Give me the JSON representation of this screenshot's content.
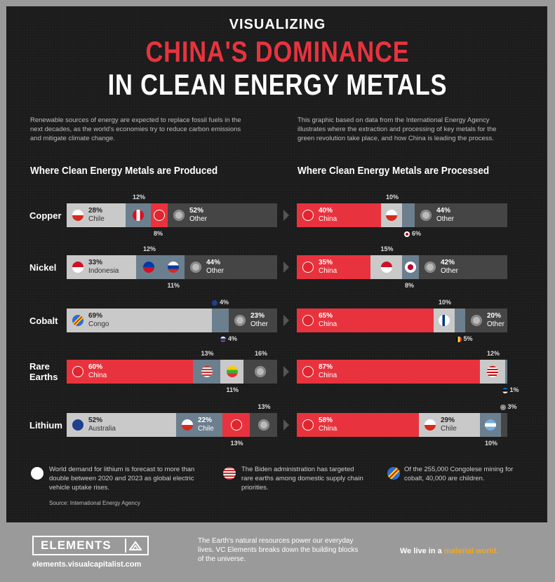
{
  "header": {
    "pre_title": "VISUALIZING",
    "title_red": "CHINA'S DOMINANCE",
    "title_white": "IN CLEAN ENERGY METALS"
  },
  "intro": {
    "left": "Renewable sources of energy are expected to replace fossil fuels in the next decades, as the world's economies try to reduce carbon emissions and mitigate climate change.",
    "right": "This graphic based on data from the International Energy Agency illustrates where the extraction and processing of key metals for the green revolution take place, and how China is leading the process."
  },
  "sections": {
    "produced": "Where Clean Energy Metals are Produced",
    "processed": "Where Clean Energy Metals are Processed"
  },
  "colors": {
    "china": "#e8333e",
    "light": "#c9c9c9",
    "mid": "#6c7f8e",
    "dark": "#3a3a3a",
    "other": "#454545"
  },
  "chart_data": [
    {
      "type": "bar",
      "title": "Where Clean Energy Metals are Produced",
      "categories": [
        "Copper",
        "Nickel",
        "Cobalt",
        "Rare Earths",
        "Lithium"
      ],
      "rows": [
        {
          "metal": "Copper",
          "segments": [
            {
              "country": "Chile",
              "value": 28,
              "label": "28%",
              "name": "Chile",
              "fill": "light",
              "flag": "chile-flag-icon"
            },
            {
              "country": "Peru",
              "value": 12,
              "label": "12%",
              "fill": "mid",
              "flag": "peru-flag-icon"
            },
            {
              "country": "China",
              "value": 8,
              "label": "8%",
              "fill": "china",
              "flag": "china-flag-icon"
            },
            {
              "country": "Other",
              "value": 52,
              "label": "52%",
              "name": "Other",
              "fill": "other",
              "flag": "other-globe-icon"
            }
          ]
        },
        {
          "metal": "Nickel",
          "segments": [
            {
              "country": "Indonesia",
              "value": 33,
              "label": "33%",
              "name": "Indonesia",
              "fill": "light",
              "flag": "indonesia-flag-icon"
            },
            {
              "country": "Philippines",
              "value": 12,
              "label": "12%",
              "fill": "mid",
              "flag": "philippines-flag-icon"
            },
            {
              "country": "Russia",
              "value": 11,
              "label": "11%",
              "fill": "mid",
              "flag": "russia-flag-icon"
            },
            {
              "country": "Other",
              "value": 44,
              "label": "44%",
              "name": "Other",
              "fill": "other",
              "flag": "other-globe-icon"
            }
          ]
        },
        {
          "metal": "Cobalt",
          "segments": [
            {
              "country": "Congo",
              "value": 69,
              "label": "69%",
              "name": "Congo",
              "fill": "light",
              "flag": "congo-flag-icon"
            },
            {
              "country": "Australia",
              "value": 4,
              "label": "4%",
              "fill": "mid",
              "flag": "australia-flag-icon"
            },
            {
              "country": "Russia",
              "value": 4,
              "label": "4%",
              "fill": "mid",
              "flag": "russia-flag-icon"
            },
            {
              "country": "Other",
              "value": 23,
              "label": "23%",
              "name": "Other",
              "fill": "other",
              "flag": "other-globe-icon"
            }
          ]
        },
        {
          "metal": "Rare Earths",
          "segments": [
            {
              "country": "China",
              "value": 60,
              "label": "60%",
              "name": "China",
              "fill": "china",
              "flag": "china-flag-icon"
            },
            {
              "country": "USA",
              "value": 13,
              "label": "13%",
              "fill": "mid",
              "flag": "usa-flag-icon"
            },
            {
              "country": "Myanmar",
              "value": 11,
              "label": "11%",
              "fill": "light",
              "flag": "myanmar-flag-icon"
            },
            {
              "country": "Other",
              "value": 16,
              "label": "16%",
              "fill": "other",
              "flag": "other-globe-icon"
            }
          ]
        },
        {
          "metal": "Lithium",
          "segments": [
            {
              "country": "Australia",
              "value": 52,
              "label": "52%",
              "name": "Australia",
              "fill": "light",
              "flag": "australia-flag-icon"
            },
            {
              "country": "Chile",
              "value": 22,
              "label": "22%",
              "name": "Chile",
              "fill": "mid",
              "flag": "chile-flag-icon"
            },
            {
              "country": "China",
              "value": 13,
              "label": "13%",
              "fill": "china",
              "flag": "china-flag-icon"
            },
            {
              "country": "Other",
              "value": 13,
              "label": "13%",
              "fill": "other",
              "flag": "other-globe-icon"
            }
          ]
        }
      ]
    },
    {
      "type": "bar",
      "title": "Where Clean Energy Metals are Processed",
      "categories": [
        "Copper",
        "Nickel",
        "Cobalt",
        "Rare Earths",
        "Lithium"
      ],
      "rows": [
        {
          "metal": "Copper",
          "segments": [
            {
              "country": "China",
              "value": 40,
              "label": "40%",
              "name": "China",
              "fill": "china",
              "flag": "china-flag-icon"
            },
            {
              "country": "Chile",
              "value": 10,
              "label": "10%",
              "fill": "light",
              "flag": "chile-flag-icon"
            },
            {
              "country": "Japan",
              "value": 6,
              "label": "6%",
              "fill": "mid",
              "flag": "japan-flag-icon"
            },
            {
              "country": "Other",
              "value": 44,
              "label": "44%",
              "name": "Other",
              "fill": "other",
              "flag": "other-globe-icon"
            }
          ]
        },
        {
          "metal": "Nickel",
          "segments": [
            {
              "country": "China",
              "value": 35,
              "label": "35%",
              "name": "China",
              "fill": "china",
              "flag": "china-flag-icon"
            },
            {
              "country": "Indonesia",
              "value": 15,
              "label": "15%",
              "fill": "light",
              "flag": "indonesia-flag-icon"
            },
            {
              "country": "Japan",
              "value": 8,
              "label": "8%",
              "fill": "mid",
              "flag": "japan-flag-icon"
            },
            {
              "country": "Other",
              "value": 42,
              "label": "42%",
              "name": "Other",
              "fill": "other",
              "flag": "other-globe-icon"
            }
          ]
        },
        {
          "metal": "Cobalt",
          "segments": [
            {
              "country": "China",
              "value": 65,
              "label": "65%",
              "name": "China",
              "fill": "china",
              "flag": "china-flag-icon"
            },
            {
              "country": "Finland",
              "value": 10,
              "label": "10%",
              "fill": "light",
              "flag": "finland-flag-icon"
            },
            {
              "country": "Belgium",
              "value": 5,
              "label": "5%",
              "fill": "mid",
              "flag": "belgium-flag-icon"
            },
            {
              "country": "Other",
              "value": 20,
              "label": "20%",
              "name": "Other",
              "fill": "other",
              "flag": "other-globe-icon"
            }
          ]
        },
        {
          "metal": "Rare Earths",
          "segments": [
            {
              "country": "China",
              "value": 87,
              "label": "87%",
              "name": "China",
              "fill": "china",
              "flag": "china-flag-icon"
            },
            {
              "country": "Malaysia",
              "value": 12,
              "label": "12%",
              "fill": "light",
              "flag": "malaysia-flag-icon"
            },
            {
              "country": "Estonia",
              "value": 1,
              "label": "1%",
              "fill": "mid",
              "flag": "estonia-flag-icon"
            }
          ]
        },
        {
          "metal": "Lithium",
          "segments": [
            {
              "country": "China",
              "value": 58,
              "label": "58%",
              "name": "China",
              "fill": "china",
              "flag": "china-flag-icon"
            },
            {
              "country": "Chile",
              "value": 29,
              "label": "29%",
              "name": "Chile",
              "fill": "light",
              "flag": "chile-flag-icon"
            },
            {
              "country": "Argentina",
              "value": 10,
              "label": "10%",
              "fill": "mid",
              "flag": "argentina-flag-icon"
            },
            {
              "country": "Other",
              "value": 3,
              "label": "3%",
              "fill": "other",
              "flag": "other-globe-icon"
            }
          ]
        }
      ]
    }
  ],
  "metal_labels": [
    "Copper",
    "Nickel",
    "Cobalt",
    "Rare\nEarths",
    "Lithium"
  ],
  "notes": [
    {
      "icon": "lithium-note-icon",
      "text": "World demand for lithium is forecast to more than double between 2020 and 2023 as global electric vehicle uptake rises."
    },
    {
      "icon": "usa-flag-icon",
      "text": "The Biden administration has targeted rare earths among domestic supply chain priorities."
    },
    {
      "icon": "congo-flag-icon",
      "text": "Of the 255,000 Congolese mining for cobalt, 40,000 are children."
    }
  ],
  "source": "Source: International Energy Agency",
  "footer": {
    "logo": "ELEMENTS",
    "url": "elements.visualcapitalist.com",
    "tagline": "The Earth's natural resources power our everyday lives. VC Elements breaks down the building blocks of the universe.",
    "slogan_a": "We live in a ",
    "slogan_b": "material world."
  }
}
